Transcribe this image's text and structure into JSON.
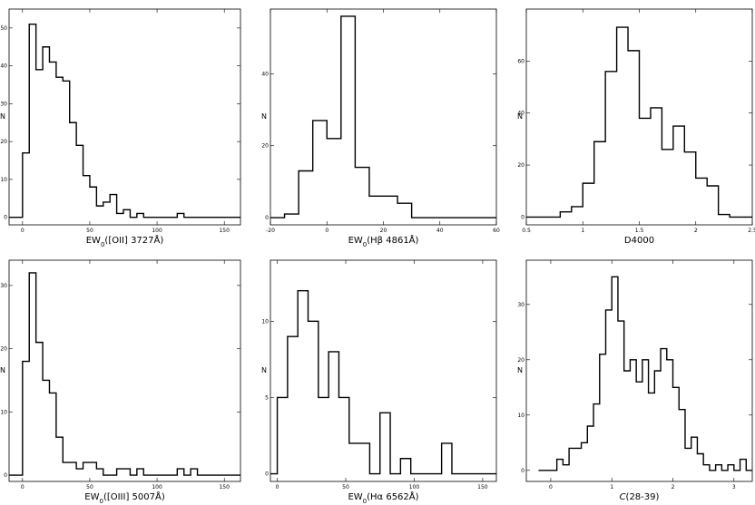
{
  "chart_data": [
    {
      "type": "step-histogram",
      "xlabel": "EW0([OII] 3727Å)",
      "ylabel": "N",
      "xlim": [
        -10,
        162
      ],
      "ylim": [
        -2,
        55
      ],
      "xticks": [
        0,
        50,
        100,
        150
      ],
      "yticks": [
        0,
        10,
        20,
        30,
        40,
        50
      ],
      "edges": [
        -10,
        -5,
        0,
        5,
        10,
        15,
        20,
        25,
        30,
        35,
        40,
        45,
        50,
        55,
        60,
        65,
        70,
        75,
        80,
        85,
        90,
        95,
        100,
        105,
        110,
        115,
        120,
        125,
        130,
        135,
        140,
        145,
        150,
        155,
        160,
        162
      ],
      "counts": [
        0,
        0,
        17,
        51,
        39,
        45,
        41,
        37,
        36,
        25,
        19,
        11,
        8,
        3,
        4,
        6,
        1,
        2,
        0,
        1,
        0,
        0,
        0,
        0,
        0,
        1,
        0,
        0,
        0,
        0,
        0,
        0,
        0,
        0,
        0
      ]
    },
    {
      "type": "step-histogram",
      "xlabel": "EW0(Hβ 4861Å)",
      "ylabel": "N",
      "xlim": [
        -20,
        60
      ],
      "ylim": [
        -2,
        58
      ],
      "xticks": [
        -20,
        0,
        20,
        40,
        60
      ],
      "yticks": [
        0,
        20,
        40
      ],
      "edges": [
        -20,
        -15,
        -10,
        -5,
        0,
        5,
        10,
        15,
        20,
        25,
        30,
        35,
        40,
        45,
        50,
        55,
        60
      ],
      "counts": [
        0,
        1,
        13,
        27,
        22,
        56,
        14,
        6,
        6,
        4,
        0,
        0,
        0,
        0,
        0,
        0
      ]
    },
    {
      "type": "step-histogram",
      "xlabel": "D4000",
      "ylabel": "N",
      "xlim": [
        0.5,
        2.5
      ],
      "ylim": [
        -3,
        80
      ],
      "xticks": [
        0.5,
        1,
        1.5,
        2,
        2.5
      ],
      "yticks": [
        0,
        20,
        40,
        60
      ],
      "edges": [
        0.5,
        0.6,
        0.7,
        0.8,
        0.9,
        1.0,
        1.1,
        1.2,
        1.3,
        1.4,
        1.5,
        1.6,
        1.7,
        1.8,
        1.9,
        2.0,
        2.1,
        2.2,
        2.3,
        2.4,
        2.5
      ],
      "counts": [
        0,
        0,
        0,
        2,
        4,
        13,
        29,
        56,
        73,
        64,
        38,
        42,
        26,
        35,
        25,
        15,
        12,
        1,
        0,
        0
      ]
    },
    {
      "type": "step-histogram",
      "xlabel": "EW0([OIII] 5007Å)",
      "ylabel": "N",
      "xlim": [
        -10,
        162
      ],
      "ylim": [
        -1,
        34
      ],
      "xticks": [
        0,
        50,
        100,
        150
      ],
      "yticks": [
        0,
        10,
        20,
        30
      ],
      "edges": [
        -10,
        -5,
        0,
        5,
        10,
        15,
        20,
        25,
        30,
        35,
        40,
        45,
        50,
        55,
        60,
        65,
        70,
        75,
        80,
        85,
        90,
        95,
        100,
        105,
        110,
        115,
        120,
        125,
        130,
        135,
        140,
        145,
        150,
        155,
        160,
        162
      ],
      "counts": [
        0,
        0,
        18,
        32,
        21,
        15,
        13,
        6,
        2,
        2,
        1,
        2,
        2,
        1,
        0,
        0,
        1,
        1,
        0,
        1,
        0,
        0,
        0,
        0,
        0,
        1,
        0,
        1,
        0,
        0,
        0,
        0,
        0,
        0,
        0
      ]
    },
    {
      "type": "step-histogram",
      "xlabel": "EW0(Hα 6562Å)",
      "ylabel": "N",
      "xlim": [
        -5,
        160
      ],
      "ylim": [
        -0.5,
        14
      ],
      "xticks": [
        0,
        50,
        100,
        150
      ],
      "yticks": [
        0,
        5,
        10
      ],
      "edges": [
        -5,
        0,
        7.5,
        15,
        22.5,
        30,
        37.5,
        45,
        52.5,
        60,
        67.5,
        75,
        82.5,
        90,
        97.5,
        105,
        112.5,
        120,
        127.5,
        135,
        142.5,
        150,
        157.5,
        160
      ],
      "counts": [
        0,
        5,
        9,
        12,
        10,
        5,
        8,
        5,
        2,
        2,
        0,
        4,
        0,
        1,
        0,
        0,
        0,
        2,
        0,
        0,
        0,
        0,
        0
      ]
    },
    {
      "type": "step-histogram",
      "xlabel": "C(28-39)",
      "ylabel": "N",
      "xlim": [
        -0.4,
        3.3
      ],
      "ylim": [
        -2,
        38
      ],
      "xticks": [
        0,
        1,
        2,
        3
      ],
      "yticks": [
        0,
        10,
        20,
        30
      ],
      "edges": [
        -0.2,
        0,
        0.1,
        0.2,
        0.3,
        0.4,
        0.5,
        0.6,
        0.7,
        0.8,
        0.9,
        1.0,
        1.1,
        1.2,
        1.3,
        1.4,
        1.5,
        1.6,
        1.7,
        1.8,
        1.9,
        2.0,
        2.1,
        2.2,
        2.3,
        2.4,
        2.5,
        2.6,
        2.7,
        2.8,
        2.9,
        3.0,
        3.1,
        3.2,
        3.3
      ],
      "counts": [
        0,
        0,
        2,
        1,
        4,
        4,
        5,
        8,
        12,
        21,
        29,
        35,
        27,
        18,
        20,
        16,
        20,
        14,
        18,
        22,
        20,
        15,
        11,
        4,
        6,
        3,
        1,
        0,
        1,
        0,
        1,
        0,
        2,
        0
      ]
    }
  ]
}
